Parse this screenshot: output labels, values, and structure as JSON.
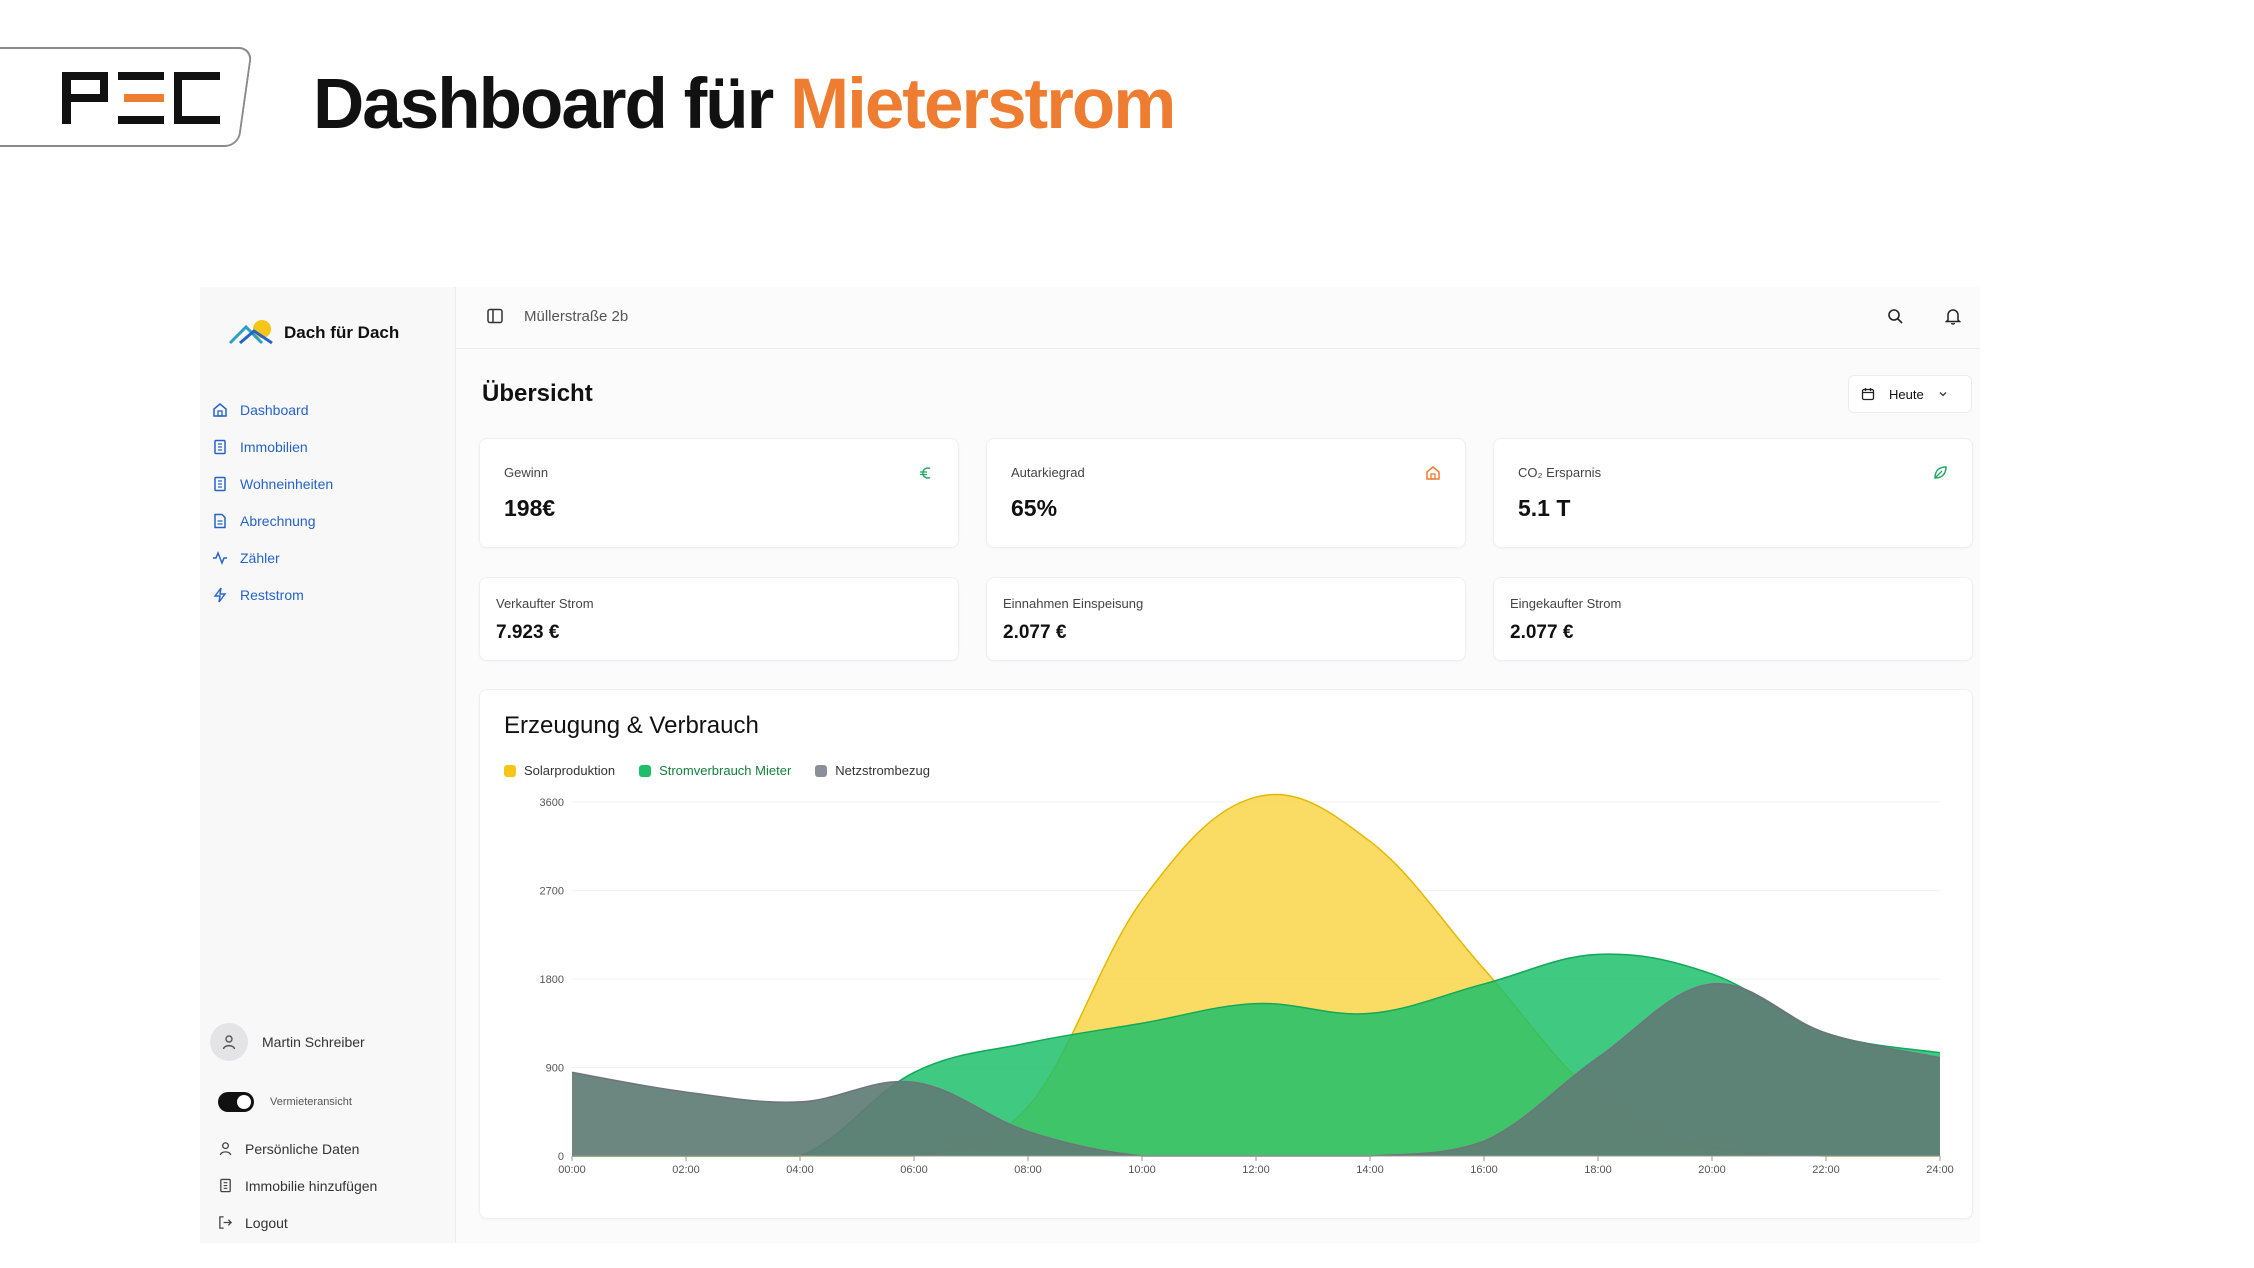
{
  "banner": {
    "title_main": "Dashboard für",
    "title_accent": "Mieterstrom",
    "logo_text": "PEC"
  },
  "sidebar": {
    "brand": "Dach für Dach",
    "nav": [
      {
        "label": "Dashboard",
        "icon": "home-icon"
      },
      {
        "label": "Immobilien",
        "icon": "building-icon"
      },
      {
        "label": "Wohneinheiten",
        "icon": "building-icon"
      },
      {
        "label": "Abrechnung",
        "icon": "document-icon"
      },
      {
        "label": "Zähler",
        "icon": "activity-icon"
      },
      {
        "label": "Reststrom",
        "icon": "bolt-icon"
      }
    ],
    "user_name": "Martin Schreiber",
    "toggle_label": "Vermieteransicht",
    "links": [
      {
        "label": "Persönliche Daten",
        "icon": "user-icon"
      },
      {
        "label": "Immobilie hinzufügen",
        "icon": "building-icon"
      },
      {
        "label": "Logout",
        "icon": "logout-icon"
      }
    ],
    "nav_color": "#2563c9"
  },
  "topbar": {
    "breadcrumb": "Müllerstraße 2b"
  },
  "main": {
    "title": "Übersicht",
    "date_filter": "Heute",
    "kpis": [
      {
        "label": "Gewinn",
        "value": "198€",
        "icon": "euro-icon",
        "icon_color": "#22a861"
      },
      {
        "label": "Autarkiegrad",
        "value": "65%",
        "icon": "home-icon",
        "icon_color": "#ef7d31"
      },
      {
        "label": "CO₂ Ersparnis",
        "value": "5.1 T",
        "icon": "leaf-icon",
        "icon_color": "#22a861"
      }
    ],
    "kpis_secondary": [
      {
        "label": "Verkaufter Strom",
        "value": "7.923 €"
      },
      {
        "label": "Einnahmen Einspeisung",
        "value": "2.077 €"
      },
      {
        "label": "Eingekaufter Strom",
        "value": "2.077 €"
      }
    ]
  },
  "chart_data": {
    "type": "area",
    "title": "Erzeugung & Verbrauch",
    "x": [
      "00:00",
      "02:00",
      "04:00",
      "06:00",
      "08:00",
      "10:00",
      "12:00",
      "14:00",
      "16:00",
      "18:00",
      "20:00",
      "22:00",
      "24:00"
    ],
    "ylim": [
      0,
      3600
    ],
    "y_ticks": [
      0,
      900,
      1800,
      2700,
      3600
    ],
    "grid": true,
    "legend_position": "top-left",
    "series": [
      {
        "name": "Solarproduktion",
        "color": "#f5c518",
        "values": [
          0,
          0,
          0,
          0,
          500,
          2600,
          3650,
          3200,
          1900,
          600,
          80,
          0,
          0
        ]
      },
      {
        "name": "Stromverbrauch Mieter",
        "color": "#1fbf6a",
        "values": [
          0,
          0,
          0,
          850,
          1150,
          1350,
          1550,
          1450,
          1750,
          2050,
          1850,
          1250,
          1050
        ]
      },
      {
        "name": "Netzstrombezug",
        "color": "#8b8f98",
        "values": [
          850,
          650,
          550,
          750,
          250,
          0,
          0,
          0,
          150,
          1000,
          1750,
          1250,
          1000
        ]
      }
    ]
  }
}
